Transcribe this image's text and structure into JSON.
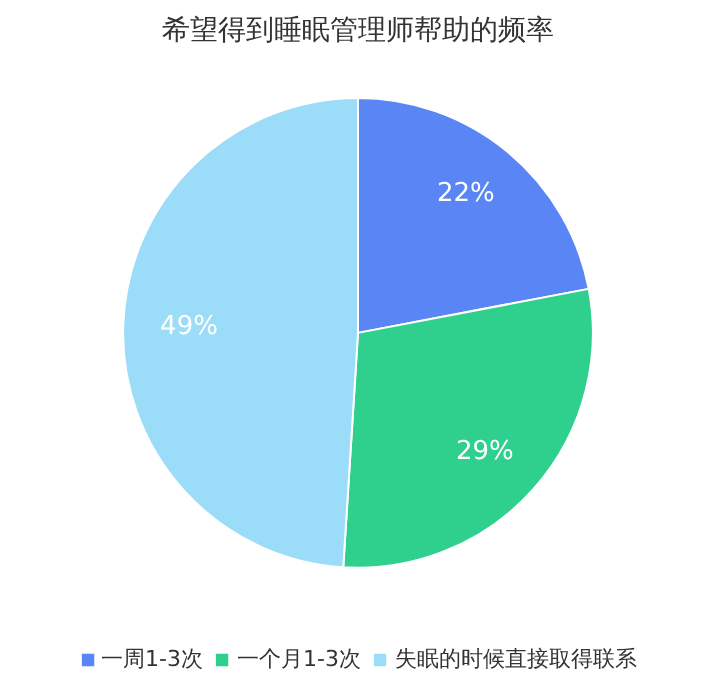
{
  "chart_data": {
    "type": "pie",
    "title": "希望得到睡眠管理师帮助的频率",
    "categories": [
      "一周1-3次",
      "一个月1-3次",
      "失眠的时候直接取得联系"
    ],
    "values": [
      22,
      29,
      49
    ],
    "value_labels": [
      "22%",
      "29%",
      "49%"
    ],
    "colors": [
      "#5a86f5",
      "#2fd08e",
      "#9bdcf8"
    ],
    "legend": "bottom"
  }
}
